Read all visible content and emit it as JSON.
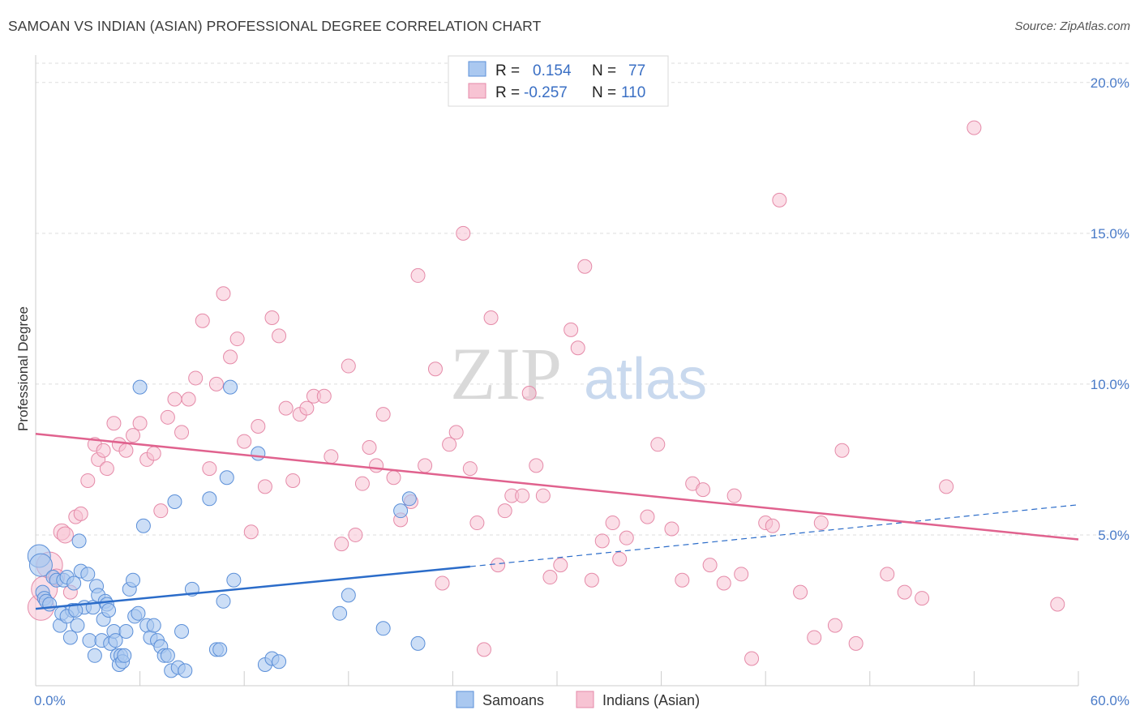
{
  "title": "SAMOAN VS INDIAN (ASIAN) PROFESSIONAL DEGREE CORRELATION CHART",
  "source": "Source: ZipAtlas.com",
  "watermark": {
    "zip": "ZIP",
    "atlas": "atlas"
  },
  "colors": {
    "samoan_fill": "#aac8f0",
    "samoan_stroke": "#5b8fd8",
    "samoan_line": "#2b6cc9",
    "indian_fill": "#f7c3d3",
    "indian_stroke": "#e58aa8",
    "indian_line": "#e0628e",
    "tick_text": "#4a7bc8",
    "grid": "#dddddd"
  },
  "legend": {
    "r_label": "R =",
    "n_label": "N =",
    "rows": [
      {
        "series": "Samoans",
        "r": "0.154",
        "n": "77"
      },
      {
        "series": "Indians (Asian)",
        "r": "-0.257",
        "n": "110"
      }
    ]
  },
  "chart_data": {
    "type": "scatter",
    "title": "SAMOAN VS INDIAN (ASIAN) PROFESSIONAL DEGREE CORRELATION CHART",
    "xlabel": "",
    "ylabel": "Professional Degree",
    "xlim": [
      0,
      60
    ],
    "ylim": [
      0,
      20.8
    ],
    "x_tick_labels": [
      "0.0%",
      "60.0%"
    ],
    "y_ticks": [
      5,
      10,
      15,
      20
    ],
    "y_tick_labels": [
      "5.0%",
      "10.0%",
      "15.0%",
      "20.0%"
    ],
    "grid": true,
    "series": [
      {
        "name": "Samoans",
        "trend": {
          "x0": 0,
          "y0": 2.55,
          "x1": 25,
          "y1": 3.95,
          "dash_x1": 60,
          "dash_y1": 6.0
        },
        "points": [
          [
            0.2,
            4.3
          ],
          [
            0.3,
            4.0
          ],
          [
            0.4,
            3.1
          ],
          [
            0.5,
            2.9
          ],
          [
            0.6,
            2.8
          ],
          [
            0.8,
            2.7
          ],
          [
            1.0,
            3.6
          ],
          [
            1.2,
            3.5
          ],
          [
            1.4,
            2.0
          ],
          [
            1.5,
            2.4
          ],
          [
            1.6,
            3.5
          ],
          [
            1.8,
            3.6
          ],
          [
            2.0,
            1.6
          ],
          [
            2.1,
            2.5
          ],
          [
            2.2,
            3.4
          ],
          [
            2.4,
            2.0
          ],
          [
            2.5,
            4.8
          ],
          [
            2.6,
            3.8
          ],
          [
            2.8,
            2.6
          ],
          [
            3.0,
            3.7
          ],
          [
            3.1,
            1.5
          ],
          [
            3.3,
            2.6
          ],
          [
            3.4,
            1.0
          ],
          [
            3.5,
            3.3
          ],
          [
            3.6,
            3.0
          ],
          [
            3.8,
            1.5
          ],
          [
            3.9,
            2.2
          ],
          [
            4.0,
            2.8
          ],
          [
            4.1,
            2.7
          ],
          [
            4.2,
            2.5
          ],
          [
            4.3,
            1.4
          ],
          [
            4.5,
            1.8
          ],
          [
            4.6,
            1.5
          ],
          [
            4.7,
            1.0
          ],
          [
            4.8,
            0.7
          ],
          [
            4.9,
            1.0
          ],
          [
            5.0,
            0.8
          ],
          [
            5.1,
            1.0
          ],
          [
            5.2,
            1.8
          ],
          [
            5.4,
            3.2
          ],
          [
            5.6,
            3.5
          ],
          [
            5.7,
            2.3
          ],
          [
            5.9,
            2.4
          ],
          [
            6.0,
            9.9
          ],
          [
            6.2,
            5.3
          ],
          [
            6.4,
            2.0
          ],
          [
            6.6,
            1.6
          ],
          [
            6.8,
            2.0
          ],
          [
            7.0,
            1.5
          ],
          [
            7.2,
            1.3
          ],
          [
            7.4,
            1.0
          ],
          [
            7.6,
            1.0
          ],
          [
            7.8,
            0.5
          ],
          [
            8.0,
            6.1
          ],
          [
            8.2,
            0.6
          ],
          [
            8.4,
            1.8
          ],
          [
            8.6,
            0.5
          ],
          [
            9.0,
            3.2
          ],
          [
            10.0,
            6.2
          ],
          [
            10.4,
            1.2
          ],
          [
            10.6,
            1.2
          ],
          [
            10.8,
            2.8
          ],
          [
            11.0,
            6.9
          ],
          [
            11.2,
            9.9
          ],
          [
            11.4,
            3.5
          ],
          [
            12.8,
            7.7
          ],
          [
            13.2,
            0.7
          ],
          [
            13.6,
            0.9
          ],
          [
            14.0,
            0.8
          ],
          [
            17.5,
            2.4
          ],
          [
            18.0,
            3.0
          ],
          [
            20.0,
            1.9
          ],
          [
            21.0,
            5.8
          ],
          [
            21.5,
            6.2
          ],
          [
            22.0,
            1.4
          ],
          [
            1.8,
            2.3
          ],
          [
            2.3,
            2.5
          ]
        ]
      },
      {
        "name": "Indians (Asian)",
        "trend": {
          "x0": 0,
          "y0": 8.35,
          "x1": 60,
          "y1": 4.85
        },
        "points": [
          [
            0.3,
            2.6
          ],
          [
            0.5,
            3.2
          ],
          [
            0.8,
            4.0
          ],
          [
            1.2,
            3.6
          ],
          [
            1.5,
            5.1
          ],
          [
            1.7,
            5.0
          ],
          [
            2.0,
            3.1
          ],
          [
            2.3,
            5.6
          ],
          [
            2.6,
            5.7
          ],
          [
            3.0,
            6.8
          ],
          [
            3.4,
            8.0
          ],
          [
            3.6,
            7.5
          ],
          [
            3.9,
            7.8
          ],
          [
            4.1,
            7.2
          ],
          [
            4.5,
            8.7
          ],
          [
            4.8,
            8.0
          ],
          [
            5.2,
            7.8
          ],
          [
            5.6,
            8.3
          ],
          [
            6.0,
            8.7
          ],
          [
            6.4,
            7.5
          ],
          [
            6.8,
            7.7
          ],
          [
            7.2,
            5.8
          ],
          [
            7.6,
            8.9
          ],
          [
            8.0,
            9.5
          ],
          [
            8.4,
            8.4
          ],
          [
            8.8,
            9.5
          ],
          [
            9.2,
            10.2
          ],
          [
            9.6,
            12.1
          ],
          [
            10.0,
            7.2
          ],
          [
            10.4,
            10.0
          ],
          [
            10.8,
            13.0
          ],
          [
            11.2,
            10.9
          ],
          [
            11.6,
            11.5
          ],
          [
            12.0,
            8.1
          ],
          [
            12.4,
            5.1
          ],
          [
            12.8,
            8.6
          ],
          [
            13.2,
            6.6
          ],
          [
            13.6,
            12.2
          ],
          [
            14.0,
            11.6
          ],
          [
            14.4,
            9.2
          ],
          [
            14.8,
            6.8
          ],
          [
            15.2,
            9.0
          ],
          [
            15.6,
            9.2
          ],
          [
            16.0,
            9.6
          ],
          [
            16.6,
            9.6
          ],
          [
            17.0,
            7.6
          ],
          [
            17.6,
            4.7
          ],
          [
            18.0,
            10.6
          ],
          [
            18.4,
            5.0
          ],
          [
            18.8,
            6.7
          ],
          [
            19.2,
            7.9
          ],
          [
            19.6,
            7.3
          ],
          [
            20.0,
            9.0
          ],
          [
            20.6,
            6.9
          ],
          [
            21.0,
            5.5
          ],
          [
            21.6,
            6.1
          ],
          [
            22.0,
            13.6
          ],
          [
            22.4,
            7.3
          ],
          [
            23.0,
            10.5
          ],
          [
            23.4,
            3.4
          ],
          [
            23.8,
            8.0
          ],
          [
            24.2,
            8.4
          ],
          [
            24.6,
            15.0
          ],
          [
            25.0,
            7.2
          ],
          [
            25.4,
            5.4
          ],
          [
            25.8,
            1.2
          ],
          [
            26.2,
            12.2
          ],
          [
            26.6,
            4.0
          ],
          [
            27.0,
            5.8
          ],
          [
            27.4,
            6.3
          ],
          [
            28.0,
            6.3
          ],
          [
            28.4,
            9.7
          ],
          [
            28.8,
            7.3
          ],
          [
            29.2,
            6.3
          ],
          [
            29.6,
            3.6
          ],
          [
            30.2,
            4.0
          ],
          [
            30.8,
            11.8
          ],
          [
            31.2,
            11.2
          ],
          [
            31.6,
            13.9
          ],
          [
            32.0,
            3.5
          ],
          [
            32.6,
            4.8
          ],
          [
            33.2,
            5.4
          ],
          [
            33.6,
            4.2
          ],
          [
            34.0,
            4.9
          ],
          [
            35.2,
            5.6
          ],
          [
            35.8,
            8.0
          ],
          [
            36.6,
            5.2
          ],
          [
            37.2,
            3.5
          ],
          [
            37.8,
            6.7
          ],
          [
            38.4,
            6.5
          ],
          [
            38.8,
            4.0
          ],
          [
            39.6,
            3.4
          ],
          [
            40.2,
            6.3
          ],
          [
            40.6,
            3.7
          ],
          [
            41.2,
            0.9
          ],
          [
            42.0,
            5.4
          ],
          [
            42.4,
            5.3
          ],
          [
            42.8,
            16.1
          ],
          [
            44.0,
            3.1
          ],
          [
            44.8,
            1.6
          ],
          [
            45.2,
            5.4
          ],
          [
            46.0,
            2.0
          ],
          [
            46.4,
            7.8
          ],
          [
            47.2,
            1.4
          ],
          [
            49.0,
            3.7
          ],
          [
            50.0,
            3.1
          ],
          [
            51.0,
            2.9
          ],
          [
            52.4,
            6.6
          ],
          [
            54.0,
            18.5
          ],
          [
            58.8,
            2.7
          ]
        ]
      }
    ],
    "bottom_legend": [
      "Samoans",
      "Indians (Asian)"
    ]
  }
}
